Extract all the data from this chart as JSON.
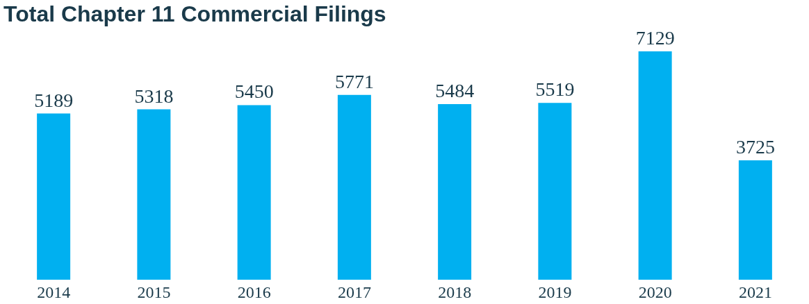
{
  "chart_data": {
    "type": "bar",
    "title": "Total Chapter 11 Commercial Filings",
    "categories": [
      "2014",
      "2015",
      "2016",
      "2017",
      "2018",
      "2019",
      "2020",
      "2021"
    ],
    "values": [
      5189,
      5318,
      5450,
      5771,
      5484,
      5519,
      7129,
      3725
    ],
    "color": "#00b0f0",
    "data_labels": true
  }
}
